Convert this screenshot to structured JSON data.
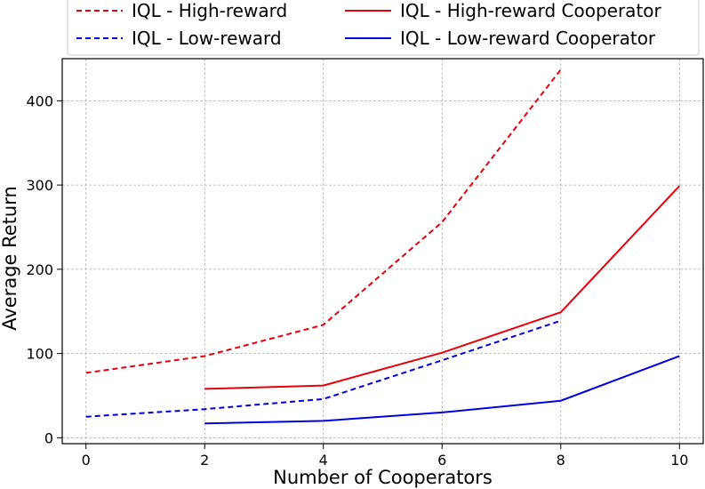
{
  "chart_data": {
    "type": "line",
    "xlabel": "Number of Cooperators",
    "ylabel": "Average Return",
    "xlim": [
      -0.4,
      10.4
    ],
    "ylim": [
      -7,
      450
    ],
    "xticks": [
      0,
      2,
      4,
      6,
      8,
      10
    ],
    "yticks": [
      0,
      100,
      200,
      300,
      400
    ],
    "xtick_labels": [
      "0",
      "2",
      "4",
      "6",
      "8",
      "10"
    ],
    "ytick_labels": [
      "0",
      "100",
      "200",
      "300",
      "400"
    ],
    "grid": true,
    "legend_position": "top",
    "series": [
      {
        "name": "IQL - High-reward",
        "color": "#e8000b",
        "dash": true,
        "x": [
          0,
          2,
          4,
          6,
          8
        ],
        "y": [
          77,
          97,
          134,
          256,
          437
        ]
      },
      {
        "name": "IQL - Low-reward",
        "color": "#0000e0",
        "dash": true,
        "x": [
          0,
          2,
          4,
          6,
          8
        ],
        "y": [
          25,
          34,
          46,
          92,
          139
        ]
      },
      {
        "name": "IQL - High-reward Cooperator",
        "color": "#e8000b",
        "dash": false,
        "x": [
          2,
          4,
          6,
          8,
          10
        ],
        "y": [
          58,
          62,
          101,
          149,
          299
        ]
      },
      {
        "name": "IQL - Low-reward Cooperator",
        "color": "#0000e0",
        "dash": false,
        "x": [
          2,
          4,
          6,
          8,
          10
        ],
        "y": [
          17,
          20,
          30,
          44,
          97
        ]
      }
    ]
  }
}
